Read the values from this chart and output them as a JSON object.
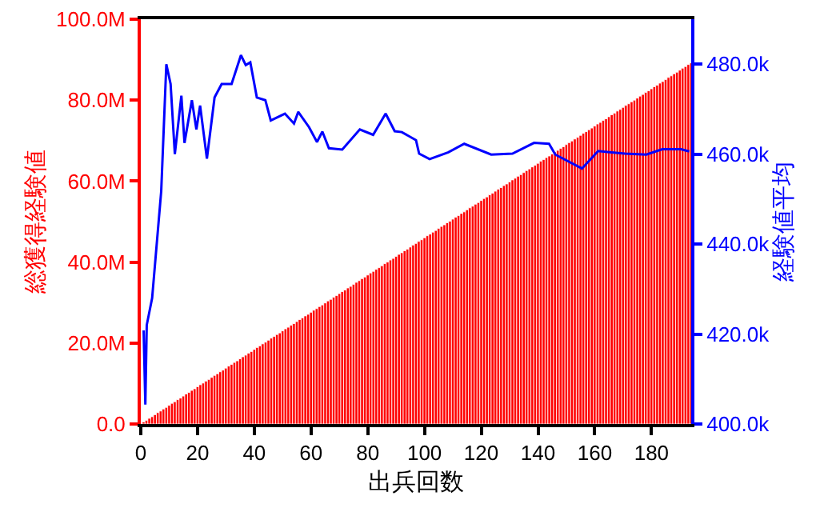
{
  "chart_data": {
    "type": "bar",
    "xlabel": "出兵回数",
    "ylabel": "総獲得経験値",
    "y2label": "経験値平均",
    "x": [
      1,
      2,
      3,
      4,
      5,
      6,
      7,
      8,
      9,
      10,
      11,
      12,
      13,
      14,
      15,
      16,
      17,
      18,
      19,
      20,
      21,
      22,
      23,
      24,
      25,
      26,
      27,
      28,
      29,
      30,
      31,
      32,
      33,
      34,
      35,
      36,
      37,
      38,
      39,
      40,
      41,
      42,
      43,
      44,
      45,
      46,
      47,
      48,
      49,
      50,
      51,
      52,
      53,
      54,
      55,
      56,
      57,
      58,
      59,
      60,
      61,
      62,
      63,
      64,
      65,
      66,
      67,
      68,
      69,
      70,
      71,
      72,
      73,
      74,
      75,
      76,
      77,
      78,
      79,
      80,
      81,
      82,
      83,
      84,
      85,
      86,
      87,
      88,
      89,
      90,
      91,
      92,
      93,
      94,
      95,
      96,
      97,
      98,
      99,
      100,
      101,
      102,
      103,
      104,
      105,
      106,
      107,
      108,
      109,
      110,
      111,
      112,
      113,
      114,
      115,
      116,
      117,
      118,
      119,
      120,
      121,
      122,
      123,
      124,
      125,
      126,
      127,
      128,
      129,
      130,
      131,
      132,
      133,
      134,
      135,
      136,
      137,
      138,
      139,
      140,
      141,
      142,
      143,
      144,
      145,
      146,
      147,
      148,
      149,
      150,
      151,
      152,
      153,
      154,
      155,
      156,
      157,
      158,
      159,
      160,
      161,
      162,
      163,
      164,
      165,
      166,
      167,
      168,
      169,
      170,
      171,
      172,
      173,
      174,
      175,
      176,
      177,
      178,
      179,
      180,
      181,
      182,
      183,
      184,
      185,
      186,
      187,
      188,
      189,
      190,
      191,
      192,
      193,
      194
    ],
    "series": [
      {
        "color": "#ff0000",
        "values": [
          0.5,
          0.9,
          1.4,
          1.8,
          2.3,
          2.8,
          3.2,
          3.7,
          4.1,
          4.6,
          5.1,
          5.5,
          6.0,
          6.4,
          6.9,
          7.4,
          7.8,
          8.3,
          8.7,
          9.2,
          9.7,
          10.1,
          10.6,
          11.0,
          11.5,
          12.0,
          12.4,
          12.9,
          13.3,
          13.8,
          14.3,
          14.7,
          15.2,
          15.6,
          16.1,
          16.6,
          17.0,
          17.5,
          17.9,
          18.4,
          18.9,
          19.3,
          19.8,
          20.2,
          20.7,
          21.2,
          21.6,
          22.1,
          22.5,
          23.0,
          23.5,
          23.9,
          24.4,
          24.8,
          25.3,
          25.8,
          26.2,
          26.7,
          27.1,
          27.6,
          28.1,
          28.5,
          29.0,
          29.4,
          29.9,
          30.4,
          30.8,
          31.3,
          31.7,
          32.2,
          32.7,
          33.1,
          33.6,
          34.0,
          34.5,
          35.0,
          35.4,
          35.9,
          36.3,
          36.8,
          37.3,
          37.7,
          38.2,
          38.6,
          39.1,
          39.6,
          40.0,
          40.5,
          40.9,
          41.4,
          41.9,
          42.3,
          42.8,
          43.2,
          43.7,
          44.2,
          44.6,
          45.1,
          45.5,
          46.0,
          46.5,
          46.9,
          47.4,
          47.8,
          48.3,
          48.8,
          49.2,
          49.7,
          50.1,
          50.6,
          51.1,
          51.5,
          52.0,
          52.4,
          52.9,
          53.4,
          53.8,
          54.3,
          54.7,
          55.2,
          55.7,
          56.1,
          56.6,
          57.0,
          57.5,
          58.0,
          58.4,
          58.9,
          59.3,
          59.8,
          60.3,
          60.7,
          61.2,
          61.6,
          62.1,
          62.6,
          63.0,
          63.5,
          63.9,
          64.4,
          64.9,
          65.3,
          65.8,
          66.2,
          66.7,
          67.2,
          67.6,
          68.1,
          68.5,
          69.0,
          69.5,
          69.9,
          70.4,
          70.8,
          71.3,
          71.8,
          72.2,
          72.7,
          73.1,
          73.6,
          74.1,
          74.5,
          75.0,
          75.4,
          75.9,
          76.4,
          76.8,
          77.3,
          77.7,
          78.2,
          78.7,
          79.1,
          79.6,
          80.0,
          80.5,
          81.0,
          81.4,
          81.9,
          82.3,
          82.8,
          83.3,
          83.7,
          84.2,
          84.6,
          85.1,
          85.6,
          86.0,
          86.5,
          86.9,
          87.4,
          87.9,
          88.3,
          88.8,
          89.2
        ]
      },
      {
        "type": "line",
        "axis": "y2",
        "color": "#0000ff",
        "x": [
          1,
          1.6,
          2.1,
          4,
          7.2,
          9,
          10.5,
          12,
          14.3,
          15.4,
          18,
          19.6,
          20.9,
          23.3,
          26,
          28.5,
          32,
          35.3,
          37,
          38.6,
          40.9,
          43.9,
          45.8,
          50.8,
          54,
          55.5,
          59.3,
          62.1,
          64,
          66.3,
          71,
          77.2,
          81.9,
          86.3,
          89.5,
          92,
          97,
          98.1,
          101.8,
          108.4,
          114,
          123.5,
          131,
          138.6,
          143.9,
          146.1,
          155.5,
          161.2,
          170.6,
          178.2,
          183.8,
          190.4,
          193.3
        ],
        "values": [
          420.8,
          404.3,
          422,
          428,
          451.8,
          480,
          475.6,
          460,
          473,
          462.5,
          472,
          465.5,
          470.8,
          459,
          472.6,
          475.6,
          475.6,
          482,
          479.8,
          480.4,
          472.6,
          472,
          467.5,
          469,
          466.8,
          469.4,
          466,
          462.7,
          465,
          461.3,
          461,
          465.5,
          464.3,
          469,
          465.1,
          464.9,
          463.1,
          460.1,
          458.9,
          460.4,
          462.3,
          459.9,
          460.1,
          462.5,
          462.3,
          459.9,
          456.8,
          460.7,
          460.1,
          459.9,
          461.1,
          461.1,
          460.6
        ]
      }
    ],
    "xlim": [
      0,
      194
    ],
    "xticks": [
      0,
      20,
      40,
      60,
      80,
      100,
      120,
      140,
      160,
      180
    ],
    "ylim": [
      0,
      100
    ],
    "yticks": [
      {
        "value": 0,
        "label": "0.0"
      },
      {
        "value": 20,
        "label": "20.0M"
      },
      {
        "value": 40,
        "label": "40.0M"
      },
      {
        "value": 60,
        "label": "60.0M"
      },
      {
        "value": 80,
        "label": "80.0M"
      },
      {
        "value": 100,
        "label": "100.0M"
      }
    ],
    "y2lim": [
      400,
      490
    ],
    "y2ticks": [
      {
        "value": 400,
        "label": "400.0k"
      },
      {
        "value": 420,
        "label": "420.0k"
      },
      {
        "value": 440,
        "label": "440.0k"
      },
      {
        "value": 460,
        "label": "460.0k"
      },
      {
        "value": 480,
        "label": "480.0k"
      }
    ],
    "grid": false,
    "line_style": "solid",
    "marker": "none"
  }
}
